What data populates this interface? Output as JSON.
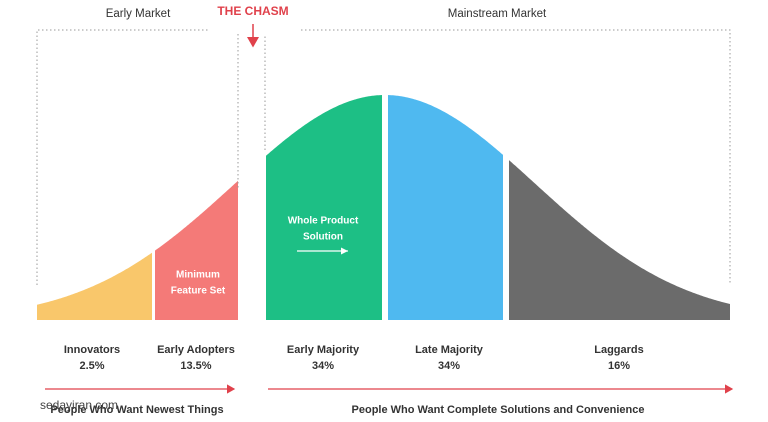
{
  "header": {
    "early_market": "Early Market",
    "chasm": "THE CHASM",
    "mainstream_market": "Mainstream Market"
  },
  "segments": [
    {
      "name": "Innovators",
      "share": "2.5%"
    },
    {
      "name": "Early Adopters",
      "share": "13.5%"
    },
    {
      "name": "Early Majority",
      "share": "34%"
    },
    {
      "name": "Late Majority",
      "share": "34%"
    },
    {
      "name": "Laggards",
      "share": "16%"
    }
  ],
  "annotations": {
    "minimum_feature_set": [
      "Minimum",
      "Feature Set"
    ],
    "whole_product": [
      "Whole Product",
      "Solution"
    ]
  },
  "footer": {
    "left": "People Who Want Newest Things",
    "right": "People Who Want Complete Solutions and Convenience"
  },
  "watermark": "sedayiran.com"
}
